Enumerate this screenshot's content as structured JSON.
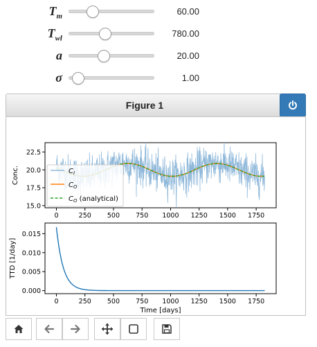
{
  "sliders": [
    {
      "label": "T",
      "sub": "m",
      "value": "60.00",
      "position": 0.28
    },
    {
      "label": "T",
      "sub": "wl",
      "value": "780.00",
      "position": 0.43
    },
    {
      "label": "a",
      "sub": "",
      "value": "20.00",
      "position": 0.41
    },
    {
      "label": "σ",
      "sub": "",
      "value": "1.00",
      "position": 0.11
    }
  ],
  "figure": {
    "title": "Figure 1"
  },
  "toolbar": {
    "buttons": [
      "home",
      "back",
      "forward",
      "pan",
      "zoom",
      "save"
    ]
  },
  "colors": {
    "ci": "#8fb8da",
    "co": "#ff7f0e",
    "analytical": "#2ca02c",
    "td": "#1f77b4",
    "accent": "#337ab7"
  },
  "chart_data": [
    {
      "type": "line",
      "xlabel": "",
      "ylabel": "Conc.",
      "xlim": [
        -100,
        1925
      ],
      "ylim": [
        14.7,
        23.8
      ],
      "xticks": [
        0,
        250,
        500,
        750,
        1000,
        1250,
        1500,
        1750
      ],
      "yticks": [
        15.0,
        17.5,
        20.0,
        22.5
      ],
      "ytick_labels": [
        "15.0",
        "17.5",
        "20.0",
        "22.5"
      ],
      "series": [
        {
          "name": "C_I",
          "label_main": "C",
          "label_sub": "I",
          "label_suffix": "",
          "style": "noisy",
          "mean": 20,
          "amplitude": 0.9,
          "period": 780,
          "noise": 1.3
        },
        {
          "name": "C_O",
          "label_main": "C",
          "label_sub": "O",
          "label_suffix": "",
          "style": "solid",
          "mean": 20,
          "amplitude": 0.9,
          "period": 780
        },
        {
          "name": "C_O (analytical)",
          "label_main": "C",
          "label_sub": "O",
          "label_suffix": " (analytical)",
          "style": "dashed",
          "mean": 20,
          "amplitude": 0.9,
          "period": 780
        }
      ],
      "x_range": [
        0,
        1825
      ],
      "legend": "left"
    },
    {
      "type": "line",
      "xlabel": "Time [days]",
      "ylabel": "TTD [1/day]",
      "xlim": [
        -100,
        1925
      ],
      "ylim": [
        -0.0008,
        0.0178
      ],
      "xticks": [
        0,
        250,
        500,
        750,
        1000,
        1250,
        1500,
        1750
      ],
      "yticks": [
        0.0,
        0.005,
        0.01,
        0.015
      ],
      "ytick_labels": [
        "0.000",
        "0.005",
        "0.010",
        "0.015"
      ],
      "series": [
        {
          "name": "TTD",
          "style": "solid",
          "peak": 0.0167,
          "tau": 60
        }
      ],
      "x_range": [
        0,
        1825
      ]
    }
  ]
}
